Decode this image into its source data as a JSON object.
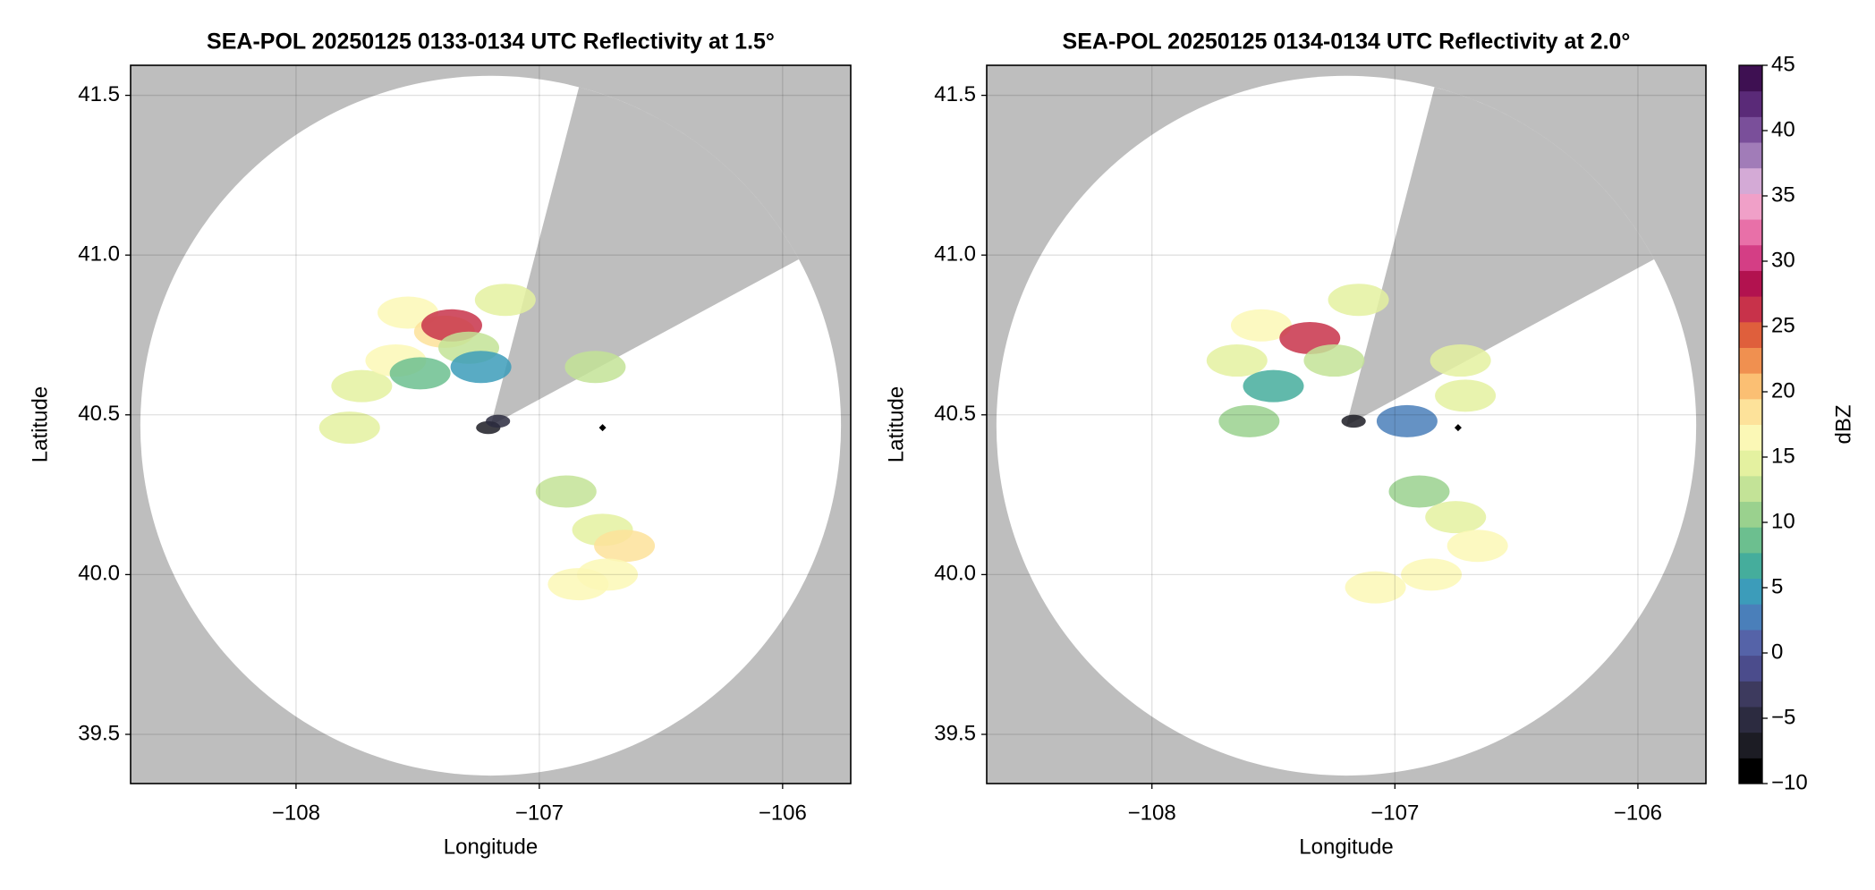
{
  "chart_data": [
    {
      "type": "radar",
      "title": "SEA-POL 20250125 0133-0134 UTC Reflectivity at 1.5°",
      "xlabel": "Longitude",
      "ylabel": "Latitude",
      "xlim": [
        -108.68,
        -105.72
      ],
      "ylim": [
        39.346,
        41.594
      ],
      "xticks": [
        {
          "value": -108,
          "label": "−108"
        },
        {
          "value": -107,
          "label": "−107"
        },
        {
          "value": -106,
          "label": "−106"
        }
      ],
      "yticks": [
        39.5,
        {
          "value": 40,
          "label": "40.0"
        },
        40.5,
        {
          "value": 41,
          "label": "41.0"
        },
        41.5
      ],
      "grid": true,
      "coverage": {
        "center": [
          -107.2,
          40.466
        ],
        "radius": [
          1.44,
          1.095
        ],
        "blocked": [
          14.6,
          61.7
        ]
      },
      "marker": {
        "lon": -106.74,
        "lat": 40.46
      },
      "echoes": [
        {
          "lon": -107.73,
          "lat": 40.59,
          "dbz": 15
        },
        {
          "lon": -107.59,
          "lat": 40.67,
          "dbz": 16
        },
        {
          "lon": -107.54,
          "lat": 40.82,
          "dbz": 17
        },
        {
          "lon": -107.39,
          "lat": 40.76,
          "dbz": 18
        },
        {
          "lon": -107.36,
          "lat": 40.78,
          "dbz": 27
        },
        {
          "lon": -107.29,
          "lat": 40.71,
          "dbz": 12
        },
        {
          "lon": -107.49,
          "lat": 40.63,
          "dbz": 8
        },
        {
          "lon": -107.24,
          "lat": 40.65,
          "dbz": 5
        },
        {
          "lon": -107.14,
          "lat": 40.86,
          "dbz": 15
        },
        {
          "lon": -107.78,
          "lat": 40.46,
          "dbz": 14
        },
        {
          "lon": -107.21,
          "lat": 40.46,
          "dbz": -8
        },
        {
          "lon": -107.17,
          "lat": 40.48,
          "dbz": -5
        },
        {
          "lon": -106.89,
          "lat": 40.26,
          "dbz": 12
        },
        {
          "lon": -106.74,
          "lat": 40.14,
          "dbz": 15
        },
        {
          "lon": -106.65,
          "lat": 40.09,
          "dbz": 18
        },
        {
          "lon": -106.84,
          "lat": 39.97,
          "dbz": 17
        },
        {
          "lon": -106.72,
          "lat": 40.0,
          "dbz": 17
        },
        {
          "lon": -106.77,
          "lat": 40.65,
          "dbz": 12
        }
      ]
    },
    {
      "type": "radar",
      "title": "SEA-POL 20250125 0134-0134 UTC Reflectivity at 2.0°",
      "xlabel": "Longitude",
      "ylabel": "Latitude",
      "xlim": [
        -108.68,
        -105.72
      ],
      "ylim": [
        39.346,
        41.594
      ],
      "xticks": [
        {
          "value": -108,
          "label": "−108"
        },
        {
          "value": -107,
          "label": "−107"
        },
        {
          "value": -106,
          "label": "−106"
        }
      ],
      "yticks": [
        39.5,
        {
          "value": 40,
          "label": "40.0"
        },
        40.5,
        {
          "value": 41,
          "label": "41.0"
        },
        41.5
      ],
      "grid": true,
      "coverage": {
        "center": [
          -107.2,
          40.466
        ],
        "radius": [
          1.44,
          1.095
        ],
        "blocked": [
          14.6,
          61.7
        ]
      },
      "marker": {
        "lon": -106.74,
        "lat": 40.46
      },
      "echoes": [
        {
          "lon": -107.55,
          "lat": 40.78,
          "dbz": 17
        },
        {
          "lon": -107.65,
          "lat": 40.67,
          "dbz": 15
        },
        {
          "lon": -107.35,
          "lat": 40.74,
          "dbz": 26
        },
        {
          "lon": -107.25,
          "lat": 40.67,
          "dbz": 12
        },
        {
          "lon": -107.5,
          "lat": 40.59,
          "dbz": 6
        },
        {
          "lon": -107.15,
          "lat": 40.86,
          "dbz": 14
        },
        {
          "lon": -107.6,
          "lat": 40.48,
          "dbz": 10
        },
        {
          "lon": -106.95,
          "lat": 40.48,
          "dbz": 3
        },
        {
          "lon": -107.17,
          "lat": 40.48,
          "dbz": -8
        },
        {
          "lon": -106.73,
          "lat": 40.67,
          "dbz": 14
        },
        {
          "lon": -106.71,
          "lat": 40.56,
          "dbz": 15
        },
        {
          "lon": -106.9,
          "lat": 40.26,
          "dbz": 10
        },
        {
          "lon": -106.75,
          "lat": 40.18,
          "dbz": 14
        },
        {
          "lon": -106.66,
          "lat": 40.09,
          "dbz": 17
        },
        {
          "lon": -106.85,
          "lat": 40.0,
          "dbz": 17
        },
        {
          "lon": -107.08,
          "lat": 39.96,
          "dbz": 16
        }
      ]
    }
  ],
  "colorbar": {
    "label": "dBZ",
    "lim": [
      -10,
      45
    ],
    "ticks": [
      {
        "value": -10,
        "label": "−10"
      },
      {
        "value": -5,
        "label": "−5"
      },
      0,
      5,
      10,
      15,
      20,
      25,
      30,
      35,
      40,
      45
    ],
    "colors": [
      "#000000",
      "#1c1c24",
      "#2c2b40",
      "#3d3a5e",
      "#4b4c8c",
      "#5563a8",
      "#4a7fba",
      "#3c9cba",
      "#45ad9c",
      "#6cbf8f",
      "#9ad18e",
      "#c3e397",
      "#e4f1a0",
      "#fbf8b6",
      "#fde29a",
      "#fbbf73",
      "#f09050",
      "#df5f3c",
      "#c8324a",
      "#b2124f",
      "#d43e85",
      "#e870a8",
      "#f0a0c8",
      "#d4aad6",
      "#a17cb8",
      "#7a4f9a",
      "#5a2a78",
      "#3e1052"
    ]
  }
}
